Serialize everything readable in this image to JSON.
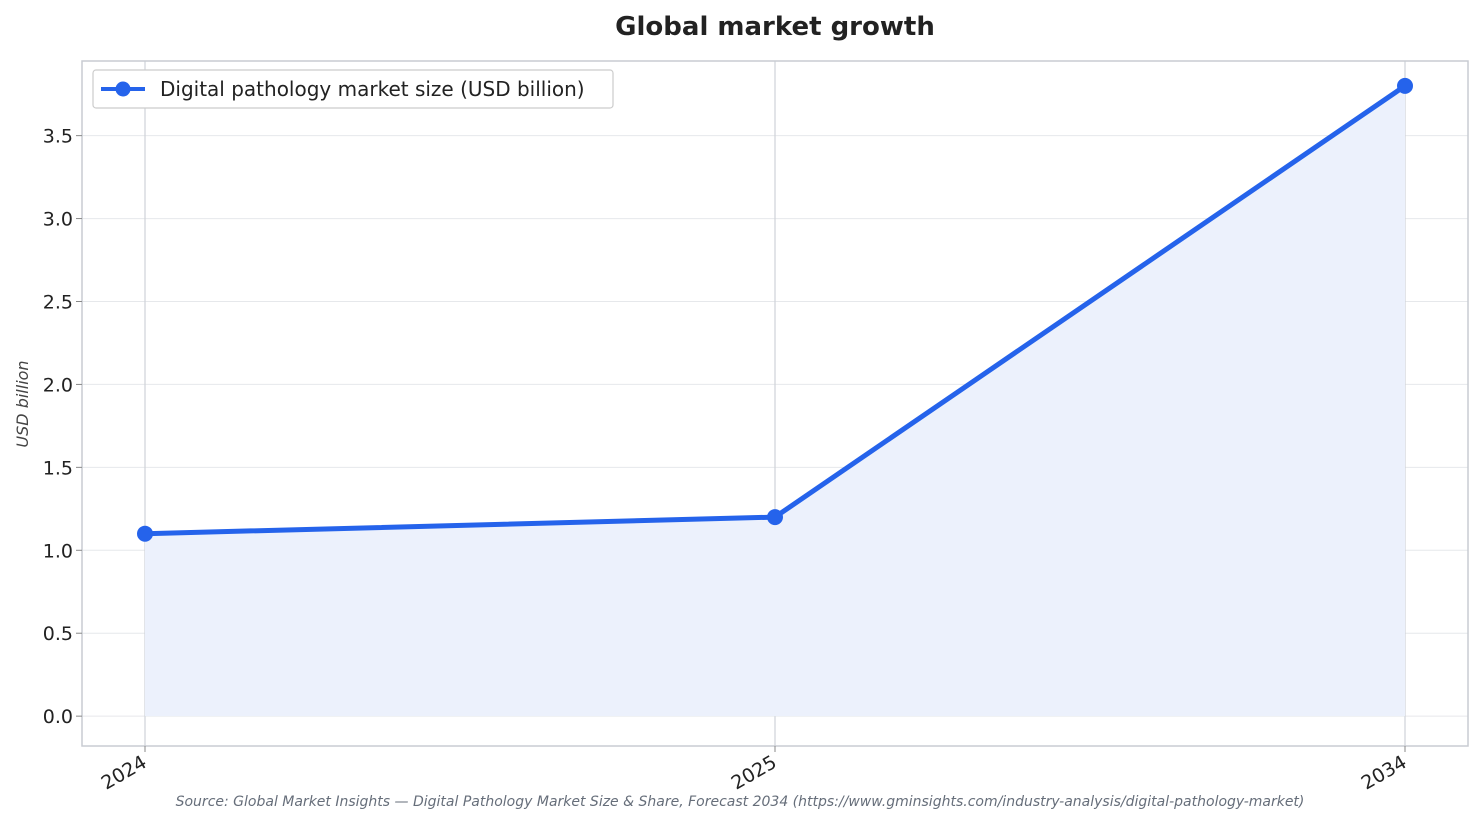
{
  "chart_data": {
    "type": "area",
    "title": "Global market growth",
    "xlabel": "",
    "ylabel": "USD billion",
    "categories": [
      "2024",
      "2025",
      "2034"
    ],
    "x": [
      2024,
      2025,
      2034
    ],
    "series": [
      {
        "name": "Digital pathology market size (USD billion)",
        "values": [
          1.1,
          1.2,
          3.8
        ],
        "color": "#2563eb",
        "fill": "#ecf1fc"
      }
    ],
    "ylim": [
      -0.18,
      3.95
    ],
    "yticks": [
      0.0,
      0.5,
      1.0,
      1.5,
      2.0,
      2.5,
      3.0,
      3.5
    ],
    "ytick_labels": [
      "0.0",
      "0.5",
      "1.0",
      "1.5",
      "2.0",
      "2.5",
      "3.0",
      "3.5"
    ],
    "grid": true,
    "legend_position": "top-left",
    "source": "Source: Global Market Insights — Digital Pathology Market Size & Share, Forecast 2034 (https://www.gminsights.com/industry-analysis/digital-pathology-market)"
  }
}
